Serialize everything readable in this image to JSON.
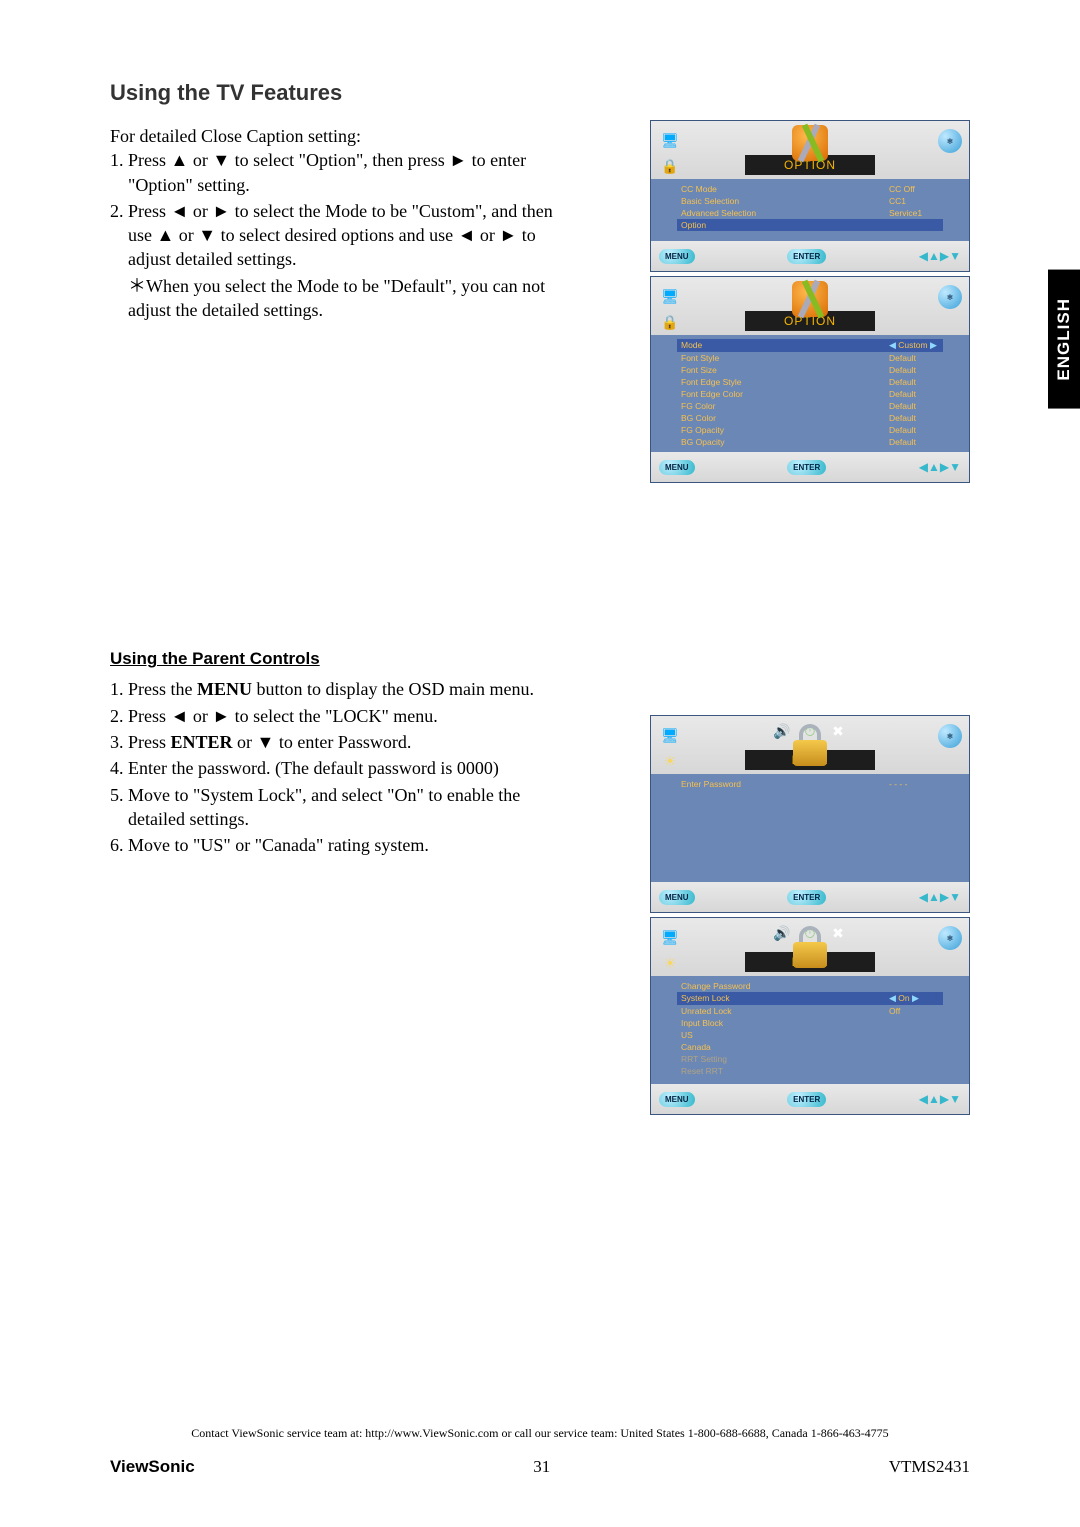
{
  "page": {
    "section_title": "Using the TV Features",
    "intro": "For detailed Close Caption setting:",
    "steps_a": [
      "Press ▲ or ▼ to select \"Option\", then press ► to enter \"Option\" setting.",
      "Press ◄ or ► to select the Mode to be \"Custom\", and then use ▲ or ▼ to select desired options and use ◄ or ► to adjust detailed settings."
    ],
    "note_a": "＊When you select the Mode to be \"Default\", you can not adjust the detailed settings.",
    "subhead": "Using the Parent Controls",
    "steps_b_1": "Press the ",
    "steps_b_1b": " button to display the OSD main menu.",
    "menu_bold": "MENU",
    "steps_b_2": "Press ◄ or ► to select the \"LOCK\" menu.",
    "steps_b_3a": "Press ",
    "steps_b_3b": " or ▼ to enter Password.",
    "enter_bold": "ENTER",
    "steps_b_4": "Enter the password. (The default password is 0000)",
    "steps_b_5": "Move to \"System Lock\", and select \"On\" to enable the detailed settings.",
    "steps_b_6": "Move to \"US\" or \"Canada\" rating system."
  },
  "lang_tab": "ENGLISH",
  "footer": {
    "contact": "Contact ViewSonic service team at: http://www.ViewSonic.com or call our service team: United States 1-800-688-6688, Canada 1-866-463-4775",
    "brand": "ViewSonic",
    "page": "31",
    "model": "VTMS2431"
  },
  "osd": {
    "option_title": "OPTION",
    "lock_title": "LOCK",
    "btn_menu": "MENU",
    "btn_enter": "ENTER",
    "option1_rows": [
      {
        "label": "CC Mode",
        "val": "CC Off"
      },
      {
        "label": "Basic Selection",
        "val": "CC1"
      },
      {
        "label": "Advanced Selection",
        "val": "Service1"
      },
      {
        "label": "Option",
        "val": "",
        "hl": true
      }
    ],
    "option2_rows": [
      {
        "label": "Mode",
        "val": "Custom",
        "hl": true,
        "arrows": true
      },
      {
        "label": "Font Style",
        "val": "Default"
      },
      {
        "label": "Font Size",
        "val": "Default"
      },
      {
        "label": "Font Edge Style",
        "val": "Default"
      },
      {
        "label": "Font Edge Color",
        "val": "Default"
      },
      {
        "label": "FG Color",
        "val": "Default"
      },
      {
        "label": "BG Color",
        "val": "Default"
      },
      {
        "label": "FG Opacity",
        "val": "Default"
      },
      {
        "label": "BG Opacity",
        "val": "Default"
      }
    ],
    "lock1_rows": [
      {
        "label": "Enter Password",
        "val": "- - - -"
      }
    ],
    "lock2_rows": [
      {
        "label": "Change Password",
        "val": ""
      },
      {
        "label": "System Lock",
        "val": "On",
        "hl": true,
        "arrows": true
      },
      {
        "label": "Unrated Lock",
        "val": "Off"
      },
      {
        "label": "Input Block",
        "val": ""
      },
      {
        "label": "US",
        "val": ""
      },
      {
        "label": "Canada",
        "val": ""
      },
      {
        "label": "RRT Setting",
        "val": "",
        "dim": true
      },
      {
        "label": "Reset RRT",
        "val": "",
        "dim": true
      }
    ]
  }
}
